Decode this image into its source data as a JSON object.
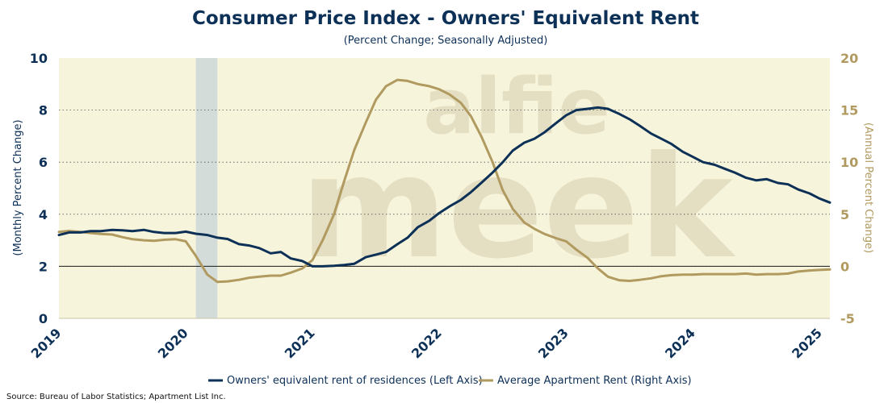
{
  "chart_data": {
    "type": "line",
    "title": "Consumer Price Index - Owners' Equivalent Rent",
    "subtitle": "(Percent Change; Seasonally Adjusted)",
    "ylabel_left": "(Monthly Percent Change)",
    "ylabel_right": "(Annual Percent Change)",
    "x_ticks": [
      "2019",
      "2020",
      "2021",
      "2022",
      "2023",
      "2024",
      "2025"
    ],
    "xlim": [
      2019.0,
      2025.08
    ],
    "ylim_left": [
      0,
      10
    ],
    "ylim_right": [
      -5,
      20
    ],
    "yticks_left": [
      "0",
      "2",
      "4",
      "6",
      "8",
      "10"
    ],
    "yticks_right": [
      "-5",
      "0",
      "5",
      "10",
      "15",
      "20"
    ],
    "recession_shading": [
      2020.08,
      2020.25
    ],
    "grid": "horizontal dotted",
    "watermark": "alfie meek",
    "legend_position": "bottom",
    "source": "Source: Bureau of Labor Statistics; Apartment List Inc.",
    "colors": {
      "left_series": "#0d3057",
      "right_series": "#b19a5f",
      "plot_background": "#f7f4dc",
      "recession": "#d3dcd9"
    },
    "series": [
      {
        "name": "Owners' equivalent rent of residences (Left Axis)",
        "axis": "left",
        "x": [
          2019.0,
          2019.08,
          2019.17,
          2019.25,
          2019.33,
          2019.42,
          2019.5,
          2019.58,
          2019.67,
          2019.75,
          2019.83,
          2019.92,
          2020.0,
          2020.08,
          2020.17,
          2020.25,
          2020.33,
          2020.42,
          2020.5,
          2020.58,
          2020.67,
          2020.75,
          2020.83,
          2020.92,
          2021.0,
          2021.08,
          2021.17,
          2021.25,
          2021.33,
          2021.42,
          2021.5,
          2021.58,
          2021.67,
          2021.75,
          2021.83,
          2021.92,
          2022.0,
          2022.08,
          2022.17,
          2022.25,
          2022.33,
          2022.42,
          2022.5,
          2022.58,
          2022.67,
          2022.75,
          2022.83,
          2022.92,
          2023.0,
          2023.08,
          2023.17,
          2023.25,
          2023.33,
          2023.42,
          2023.5,
          2023.58,
          2023.67,
          2023.75,
          2023.83,
          2023.92,
          2024.0,
          2024.08,
          2024.17,
          2024.25,
          2024.33,
          2024.42,
          2024.5,
          2024.58,
          2024.67,
          2024.75,
          2024.83,
          2024.92,
          2025.0,
          2025.08
        ],
        "y": [
          3.2,
          3.3,
          3.3,
          3.35,
          3.35,
          3.4,
          3.38,
          3.35,
          3.4,
          3.32,
          3.28,
          3.28,
          3.33,
          3.25,
          3.2,
          3.1,
          3.05,
          2.85,
          2.8,
          2.7,
          2.5,
          2.55,
          2.3,
          2.2,
          2.0,
          2.0,
          2.02,
          2.05,
          2.1,
          2.35,
          2.45,
          2.55,
          2.85,
          3.1,
          3.5,
          3.75,
          4.05,
          4.3,
          4.55,
          4.85,
          5.2,
          5.6,
          6.0,
          6.45,
          6.75,
          6.9,
          7.15,
          7.5,
          7.8,
          8.0,
          8.05,
          8.1,
          8.05,
          7.85,
          7.65,
          7.4,
          7.1,
          6.9,
          6.7,
          6.4,
          6.2,
          6.0,
          5.9,
          5.75,
          5.6,
          5.4,
          5.3,
          5.35,
          5.2,
          5.15,
          4.95,
          4.8,
          4.6,
          4.45
        ]
      },
      {
        "name": "Average Apartment Rent (Right Axis)",
        "axis": "right",
        "x": [
          2019.0,
          2019.08,
          2019.17,
          2019.25,
          2019.33,
          2019.42,
          2019.5,
          2019.58,
          2019.67,
          2019.75,
          2019.83,
          2019.92,
          2020.0,
          2020.08,
          2020.17,
          2020.25,
          2020.33,
          2020.42,
          2020.5,
          2020.58,
          2020.67,
          2020.75,
          2020.83,
          2020.92,
          2021.0,
          2021.08,
          2021.17,
          2021.25,
          2021.33,
          2021.42,
          2021.5,
          2021.58,
          2021.67,
          2021.75,
          2021.83,
          2021.92,
          2022.0,
          2022.08,
          2022.17,
          2022.25,
          2022.33,
          2022.42,
          2022.5,
          2022.58,
          2022.67,
          2022.75,
          2022.83,
          2022.92,
          2023.0,
          2023.08,
          2023.17,
          2023.25,
          2023.33,
          2023.42,
          2023.5,
          2023.58,
          2023.67,
          2023.75,
          2023.83,
          2023.92,
          2024.0,
          2024.08,
          2024.17,
          2024.25,
          2024.33,
          2024.42,
          2024.5,
          2024.58,
          2024.67,
          2024.75,
          2024.83,
          2024.92,
          2025.0,
          2025.08
        ],
        "y": [
          3.3,
          3.4,
          3.3,
          3.2,
          3.1,
          3.05,
          2.8,
          2.6,
          2.5,
          2.45,
          2.55,
          2.6,
          2.4,
          1.0,
          -0.8,
          -1.5,
          -1.45,
          -1.3,
          -1.1,
          -1.0,
          -0.9,
          -0.9,
          -0.6,
          -0.2,
          0.6,
          2.5,
          5.0,
          8.2,
          11.2,
          13.8,
          16.0,
          17.3,
          17.9,
          17.8,
          17.5,
          17.3,
          17.0,
          16.5,
          15.7,
          14.4,
          12.5,
          10.0,
          7.3,
          5.5,
          4.2,
          3.6,
          3.1,
          2.7,
          2.4,
          1.6,
          0.8,
          -0.2,
          -1.0,
          -1.35,
          -1.4,
          -1.3,
          -1.15,
          -0.95,
          -0.85,
          -0.8,
          -0.8,
          -0.75,
          -0.75,
          -0.75,
          -0.75,
          -0.7,
          -0.8,
          -0.75,
          -0.75,
          -0.7,
          -0.5,
          -0.4,
          -0.35,
          -0.3
        ]
      }
    ]
  }
}
